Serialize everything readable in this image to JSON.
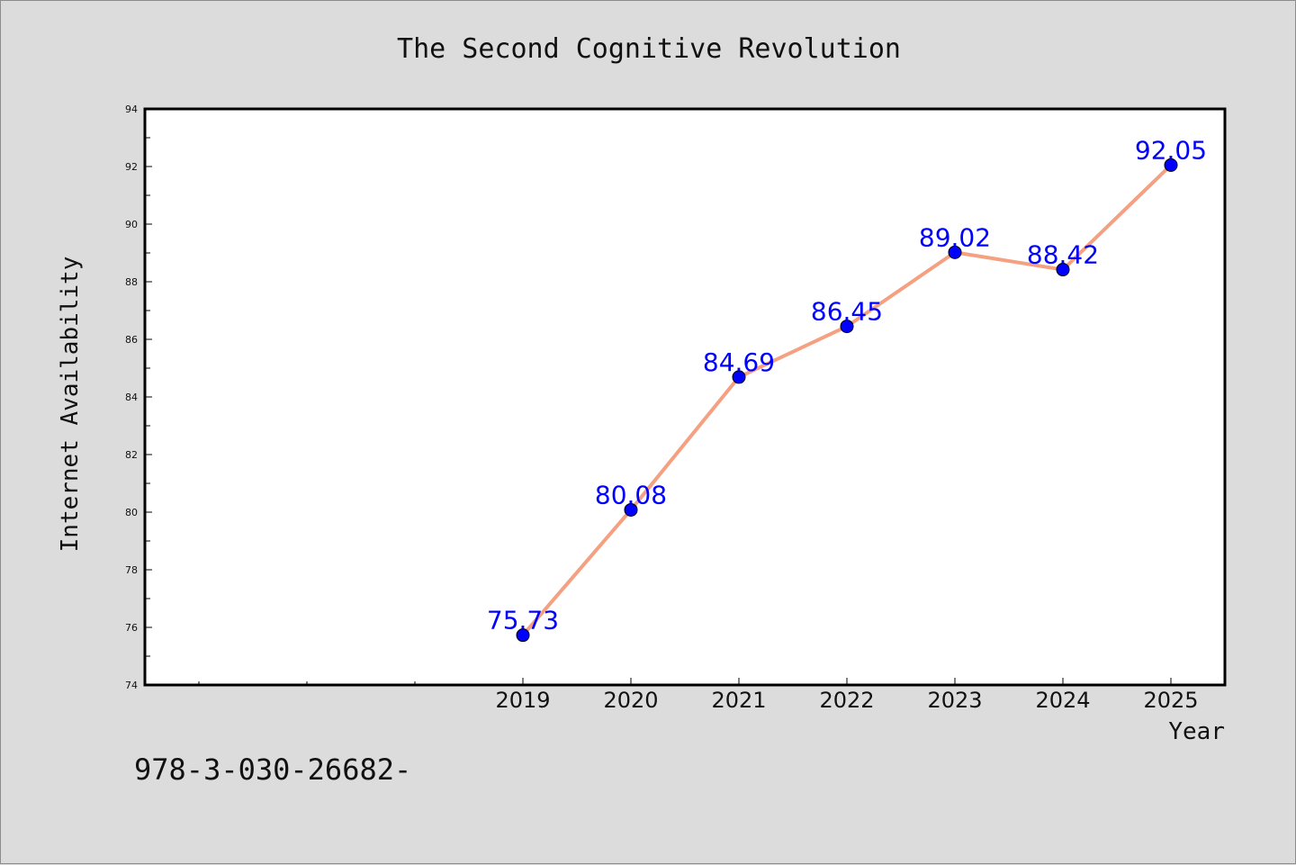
{
  "chart_data": {
    "type": "line",
    "title": "The Second Cognitive Revolution",
    "xlabel": "Year",
    "ylabel": "Internet Availability",
    "categories": [
      "2019",
      "2020",
      "2021",
      "2022",
      "2023",
      "2024",
      "2025"
    ],
    "series": [
      {
        "values": [
          75.73,
          80.08,
          84.69,
          86.45,
          89.02,
          88.42,
          92.05
        ],
        "data_labels": [
          "75.73",
          "80.08",
          "84.69",
          "86.45",
          "89.02",
          "88.42",
          "92.05"
        ]
      }
    ],
    "ylim": [
      74,
      94
    ],
    "yticks": [
      "74",
      "76",
      "78",
      "80",
      "82",
      "84",
      "86",
      "88",
      "90",
      "92",
      "94"
    ],
    "grid": false,
    "legend": "none",
    "colors": {
      "line": "#f4a081",
      "marker": "#0000ff",
      "label": "#0000ff",
      "plot_background": "#ffffff",
      "figure_background": "#dcdcdc"
    }
  },
  "footnote": "978-3-030-26682-"
}
